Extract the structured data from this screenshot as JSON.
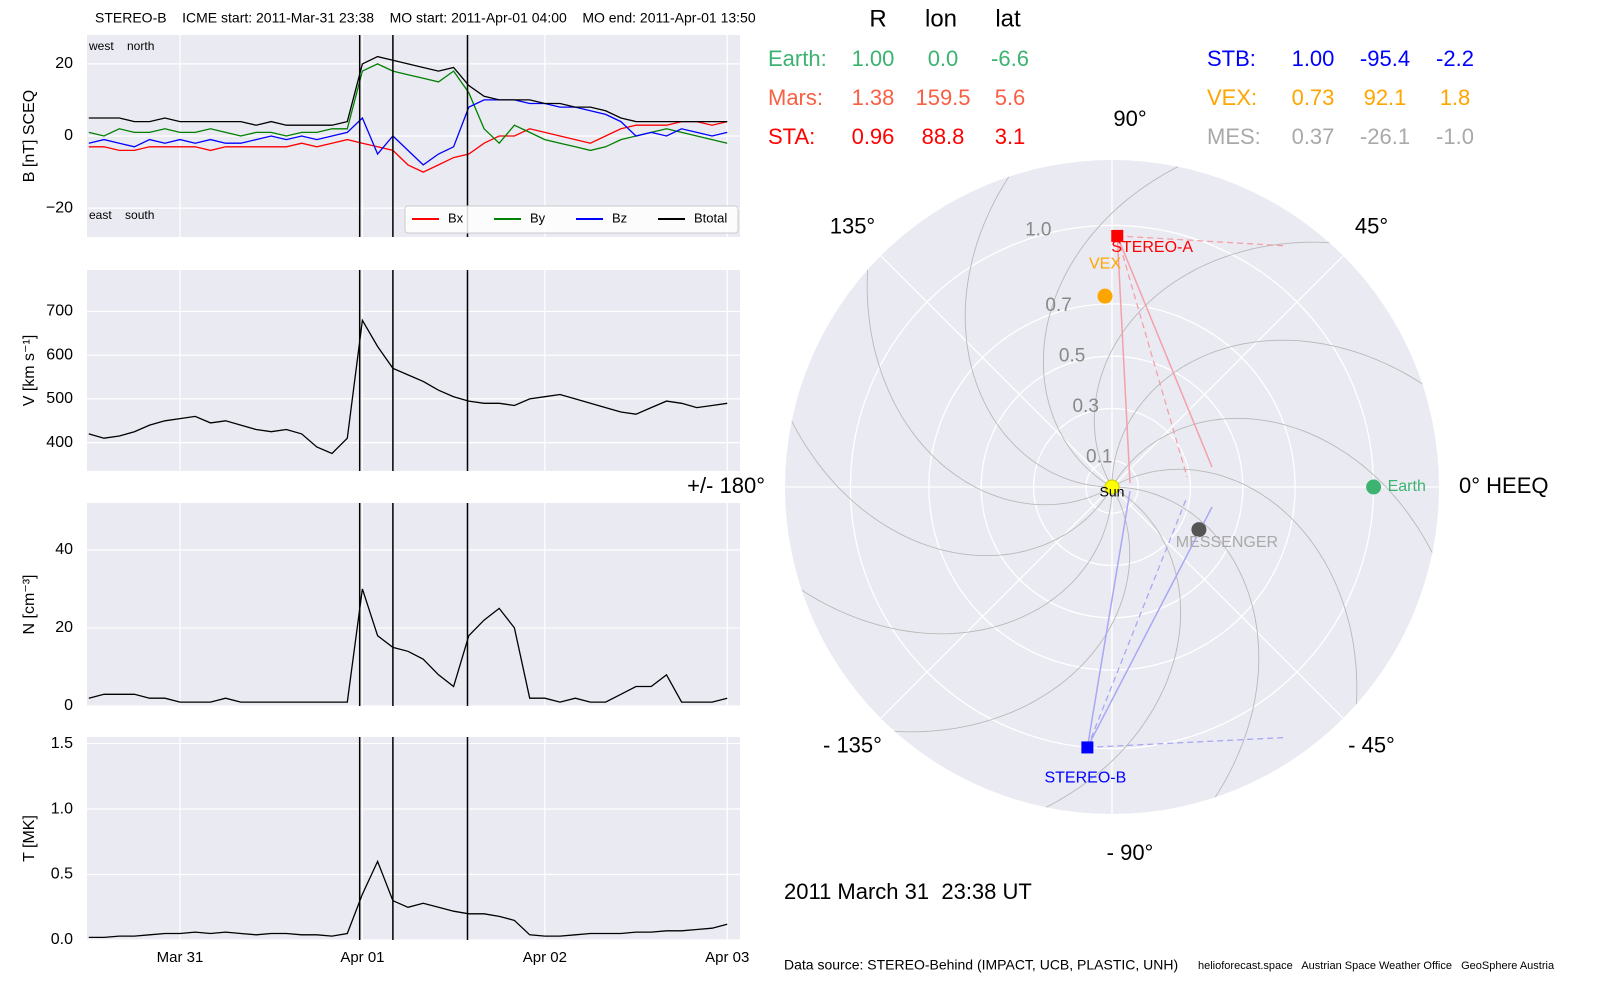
{
  "chart_data": [
    {
      "type": "line",
      "title": "STEREO-B    ICME start: 2011-Mar-31 23:38    MO start: 2011-Apr-01 04:00    MO end: 2011-Apr-01 13:50",
      "annotations": [
        "west    north",
        "east    south"
      ],
      "events": [
        90.985,
        91.167,
        91.576
      ],
      "xlim": [
        89.49,
        93.07
      ],
      "xticks": [
        {
          "value": 90,
          "label": "Mar 31"
        },
        {
          "value": 91,
          "label": "Apr 01"
        },
        {
          "value": 92,
          "label": "Apr 02"
        },
        {
          "value": 93,
          "label": "Apr 03"
        }
      ],
      "x": [
        89.5,
        89.583,
        89.667,
        89.75,
        89.833,
        89.917,
        90,
        90.083,
        90.167,
        90.25,
        90.333,
        90.417,
        90.5,
        90.583,
        90.667,
        90.75,
        90.833,
        90.917,
        91,
        91.083,
        91.167,
        91.25,
        91.333,
        91.417,
        91.5,
        91.583,
        91.667,
        91.75,
        91.833,
        91.917,
        92,
        92.083,
        92.167,
        92.25,
        92.333,
        92.417,
        92.5,
        92.583,
        92.667,
        92.75,
        92.833,
        92.917,
        93
      ],
      "ylabel": "B [nT] SCEQ",
      "ylim": [
        -28,
        28
      ],
      "yticks": [
        {
          "value": -20,
          "label": "−20"
        },
        0,
        20
      ],
      "legend": "lower right",
      "series": [
        {
          "name": "Bx",
          "color": "#ff0000",
          "values": [
            -3,
            -3,
            -4,
            -4,
            -3,
            -3,
            -3,
            -3,
            -4,
            -3,
            -3,
            -3,
            -3,
            -3,
            -2,
            -3,
            -2,
            -1,
            -2,
            -3,
            -4,
            -8,
            -10,
            -8,
            -6,
            -5,
            -2,
            0,
            0,
            2,
            1,
            0,
            -1,
            -2,
            0,
            2,
            3,
            3,
            3,
            4,
            4,
            3,
            4
          ]
        },
        {
          "name": "By",
          "color": "#008000",
          "values": [
            1,
            0,
            2,
            1,
            1,
            2,
            1,
            1,
            2,
            1,
            0,
            1,
            1,
            0,
            1,
            1,
            2,
            2,
            18,
            20,
            18,
            17,
            16,
            15,
            18,
            12,
            2,
            -2,
            3,
            1,
            -1,
            -2,
            -3,
            -4,
            -3,
            -1,
            0,
            1,
            2,
            1,
            0,
            -1,
            -2
          ]
        },
        {
          "name": "Bz",
          "color": "#0000ff",
          "values": [
            -2,
            -1,
            -2,
            -3,
            -1,
            -2,
            -1,
            -2,
            -1,
            -2,
            -2,
            -1,
            0,
            -1,
            0,
            -1,
            0,
            1,
            5,
            -5,
            0,
            -4,
            -8,
            -5,
            -3,
            8,
            10,
            10,
            10,
            9,
            9,
            8,
            8,
            7,
            6,
            4,
            0,
            1,
            0,
            2,
            1,
            0,
            1
          ]
        },
        {
          "name": "Btotal",
          "color": "#000000",
          "values": [
            5,
            5,
            5,
            4,
            4,
            5,
            4,
            4,
            4,
            4,
            4,
            3,
            4,
            3,
            3,
            3,
            3,
            4,
            20,
            22,
            21,
            20,
            19,
            18,
            19,
            14,
            11,
            10,
            10,
            10,
            9,
            9,
            8,
            8,
            7,
            5,
            4,
            4,
            4,
            4,
            4,
            4,
            4
          ]
        }
      ]
    },
    {
      "type": "line",
      "ylabel": "V [km s⁻¹]",
      "ylim": [
        335,
        795
      ],
      "yticks": [
        400,
        500,
        600,
        700
      ],
      "series": [
        {
          "color": "#000000",
          "values": [
            420,
            410,
            415,
            425,
            440,
            450,
            455,
            460,
            445,
            450,
            440,
            430,
            425,
            430,
            420,
            390,
            375,
            410,
            680,
            620,
            570,
            555,
            540,
            520,
            505,
            495,
            490,
            490,
            485,
            500,
            505,
            510,
            500,
            490,
            480,
            470,
            465,
            480,
            495,
            490,
            480,
            485,
            490
          ]
        }
      ]
    },
    {
      "type": "line",
      "ylabel": "N [cm⁻³]",
      "ylim": [
        0,
        52
      ],
      "yticks": [
        0,
        20,
        40
      ],
      "series": [
        {
          "color": "#000000",
          "values": [
            2,
            3,
            3,
            3,
            2,
            2,
            1,
            1,
            1,
            2,
            1,
            1,
            1,
            1,
            1,
            1,
            1,
            1,
            30,
            18,
            15,
            14,
            12,
            8,
            5,
            18,
            22,
            25,
            20,
            2,
            2,
            1,
            2,
            1,
            1,
            3,
            5,
            5,
            8,
            1,
            1,
            1,
            2
          ]
        }
      ]
    },
    {
      "type": "line",
      "ylabel": "T [MK]",
      "ylim": [
        0,
        1.55
      ],
      "yticks": [
        {
          "value": 0,
          "label": "0.0"
        },
        {
          "value": 0.5,
          "label": "0.5"
        },
        {
          "value": 1,
          "label": "1.0"
        },
        {
          "value": 1.5,
          "label": "1.5"
        }
      ],
      "series": [
        {
          "color": "#000000",
          "values": [
            0.02,
            0.02,
            0.03,
            0.03,
            0.04,
            0.05,
            0.05,
            0.06,
            0.05,
            0.06,
            0.05,
            0.04,
            0.05,
            0.05,
            0.04,
            0.04,
            0.03,
            0.05,
            0.35,
            0.6,
            0.3,
            0.25,
            0.28,
            0.25,
            0.22,
            0.2,
            0.2,
            0.18,
            0.15,
            0.04,
            0.03,
            0.03,
            0.04,
            0.05,
            0.05,
            0.05,
            0.06,
            0.06,
            0.07,
            0.07,
            0.08,
            0.09,
            0.12
          ]
        }
      ]
    },
    {
      "type": "polar",
      "columns": [
        "R",
        "lon",
        "lat"
      ],
      "rlim": [
        0,
        1.25
      ],
      "rticks": [
        0.1,
        0.3,
        0.5,
        0.7,
        {
          "value": 1.0,
          "label": "1.0"
        }
      ],
      "angle_ticks": [
        {
          "value": 0,
          "label": "0° HEEQ"
        },
        {
          "value": 45,
          "label": "45°"
        },
        {
          "value": 90,
          "label": "90°"
        },
        {
          "value": 135,
          "label": "135°"
        },
        {
          "value": 180,
          "label": "+/- 180°"
        },
        {
          "value": -135,
          "label": "- 135°"
        },
        {
          "value": -90,
          "label": "- 90°"
        },
        {
          "value": -45,
          "label": "- 45°"
        }
      ],
      "sun_label": "Sun",
      "bodies": [
        {
          "label": "Earth:",
          "name": "Earth",
          "color": "#3cb371",
          "values": [
            1.0,
            0.0,
            -6.6
          ],
          "value_labels": [
            "1.00",
            "0.0",
            "-6.6"
          ]
        },
        {
          "label": "Mars:",
          "color": "#f86045",
          "values": [
            1.38,
            159.5,
            5.6
          ],
          "value_labels": [
            "1.38",
            "159.5",
            "5.6"
          ]
        },
        {
          "label": "STA:",
          "name": "STEREO-A",
          "color": "#ff0000",
          "marker": "square",
          "values": [
            0.96,
            88.8,
            3.1
          ],
          "value_labels": [
            "0.96",
            "88.8",
            "3.1"
          ]
        },
        {
          "label": "STB:",
          "name": "STEREO-B",
          "color": "#0000ff",
          "marker": "square",
          "values": [
            1.0,
            -95.4,
            -2.2
          ],
          "value_labels": [
            "1.00",
            "-95.4",
            "-2.2"
          ]
        },
        {
          "label": "VEX:",
          "name": "VEX",
          "color": "#ffa500",
          "values": [
            0.73,
            92.1,
            1.8
          ],
          "value_labels": [
            "0.73",
            "92.1",
            "1.8"
          ]
        },
        {
          "label": "MES:",
          "name": "MESSENGER",
          "color": "#a9a9a9",
          "marker_color": "#555555",
          "values": [
            0.37,
            -26.1,
            -1.0
          ],
          "value_labels": [
            "0.37",
            "-26.1",
            "-1.0"
          ]
        }
      ]
    }
  ],
  "date": "2011 March 31  23:38 UT",
  "footer": {
    "source": "Data source: STEREO-Behind (IMPACT, UCB, PLASTIC, UNH)",
    "credits": "helioforecast.space   Austrian Space Weather Office   GeoSphere Austria"
  }
}
